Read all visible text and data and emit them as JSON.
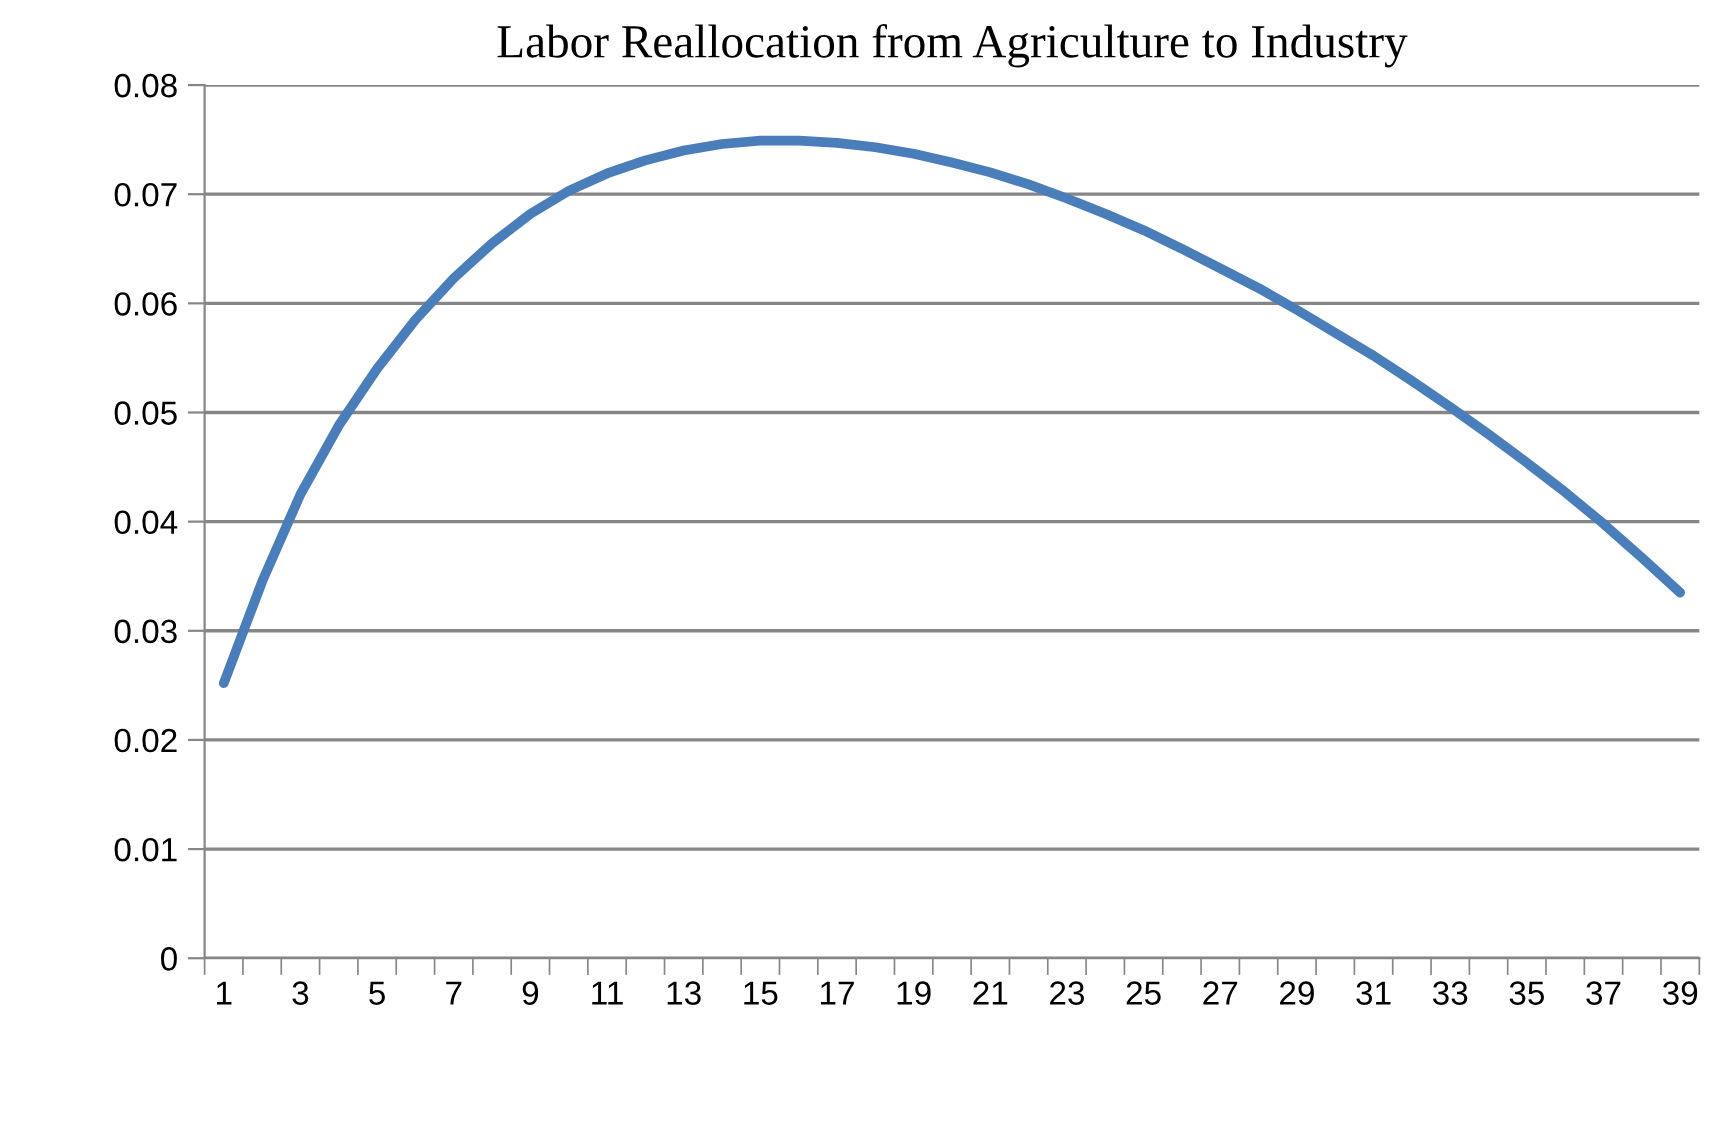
{
  "chart_data": {
    "type": "line",
    "title": "Labor Reallocation from Agriculture to Industry",
    "categories": [
      "1",
      null,
      "3",
      null,
      "5",
      null,
      "7",
      null,
      "9",
      null,
      "11",
      null,
      "13",
      null,
      "15",
      null,
      "17",
      null,
      "19",
      null,
      "21",
      null,
      "23",
      null,
      "25",
      null,
      "27",
      null,
      "29",
      null,
      "31",
      null,
      "33",
      null,
      "35",
      null,
      "37",
      null,
      "39"
    ],
    "series": [
      {
        "color": "#4a7ebb",
        "values": [
          0.0252,
          0.0345,
          0.0425,
          0.0488,
          0.054,
          0.0585,
          0.0623,
          0.0655,
          0.0682,
          0.0703,
          0.0719,
          0.0731,
          0.074,
          0.0746,
          0.0749,
          0.0749,
          0.0747,
          0.0743,
          0.0737,
          0.0729,
          0.072,
          0.0709,
          0.0696,
          0.0682,
          0.0667,
          0.065,
          0.0632,
          0.0614,
          0.0594,
          0.0573,
          0.0552,
          0.0529,
          0.0505,
          0.048,
          0.0454,
          0.0427,
          0.0398,
          0.0367,
          0.0335
        ]
      }
    ],
    "ylim": [
      0,
      0.08
    ],
    "yticks": [
      0,
      0.01,
      0.02,
      0.03,
      0.04,
      0.05,
      0.06,
      0.07,
      0.08
    ],
    "grid": "y",
    "marker": "none",
    "line_style": "solid"
  }
}
